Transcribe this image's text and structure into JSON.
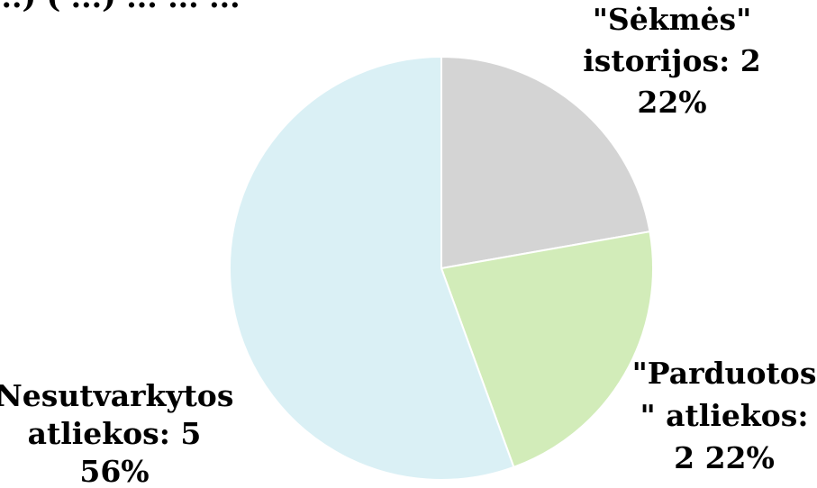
{
  "chart_data": {
    "type": "pie",
    "title_partial": "...) ( ...) ... ... ...",
    "slices": [
      {
        "name": "\"Sėkmės\" istorijos",
        "value": 2,
        "percent": "22%",
        "color": "#d4d4d4",
        "label_lines": [
          "\"Sėkmės\"",
          "istorijos: 2",
          "22%"
        ]
      },
      {
        "name": "\"Parduotos\" atliekos",
        "value": 2,
        "percent": "22%",
        "color": "#d2ecb9",
        "label_lines": [
          "\"Parduotos",
          "\" atliekos:",
          "2 22%"
        ]
      },
      {
        "name": "Nesutvarkytos atliekos",
        "value": 5,
        "percent": "56%",
        "color": "#daf0f5",
        "label_lines": [
          "Nesutvarkytos",
          "atliekos: 5",
          "56%"
        ]
      }
    ],
    "legend": "none"
  }
}
